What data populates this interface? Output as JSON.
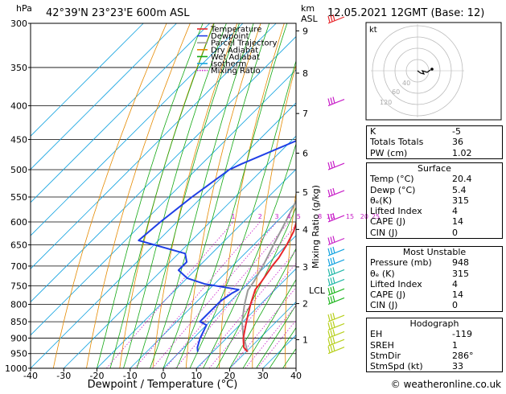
{
  "header": {
    "pressure_unit": "hPa",
    "location": "42°39'N  23°23'E  600m  ASL",
    "height_unit": "km",
    "height_unit2": "ASL",
    "datetime": "12.05.2021  12GMT  (Base: 12)"
  },
  "chart_data": {
    "type": "line",
    "xlabel": "Dewpoint / Temperature (°C)",
    "ylabel": "hPa",
    "right_label": "Mixing Ratio (g/kg)",
    "x_ticks": [
      -40,
      -30,
      -20,
      -10,
      0,
      10,
      20,
      30,
      40
    ],
    "xlim": [
      -40,
      40
    ],
    "ylim": [
      1000,
      300
    ],
    "y_scale": "log",
    "pressure_ticks": [
      300,
      350,
      400,
      450,
      500,
      550,
      600,
      650,
      700,
      750,
      800,
      850,
      900,
      950,
      1000
    ],
    "skew": true,
    "legend": [
      {
        "name": "Temperature",
        "color": "#e8262a"
      },
      {
        "name": "Dewpoint",
        "color": "#1f3fe6"
      },
      {
        "name": "Parcel Trajectory",
        "color": "#9a9a9a"
      },
      {
        "name": "Dry Adiabat",
        "color": "#e58a00"
      },
      {
        "name": "Wet Adiabat",
        "color": "#13a813"
      },
      {
        "name": "Isotherm",
        "color": "#15a4e0"
      },
      {
        "name": "Mixing Ratio",
        "color": "#c81fc8"
      }
    ],
    "legend_position": "top-left",
    "series": [
      {
        "name": "Temperature",
        "points": [
          [
            944,
            20.4
          ],
          [
            930,
            18
          ],
          [
            900,
            15
          ],
          [
            850,
            11
          ],
          [
            800,
            7
          ],
          [
            760,
            4
          ],
          [
            740,
            3.5
          ],
          [
            700,
            2
          ],
          [
            680,
            1.5
          ],
          [
            650,
            0
          ],
          [
            620,
            -2
          ],
          [
            600,
            -4
          ],
          [
            550,
            -8
          ],
          [
            500,
            -13
          ],
          [
            450,
            -19
          ],
          [
            400,
            -25
          ],
          [
            350,
            -32
          ],
          [
            320,
            -37
          ],
          [
            300,
            -41
          ]
        ]
      },
      {
        "name": "Dewpoint",
        "points": [
          [
            944,
            5.4
          ],
          [
            930,
            4
          ],
          [
            900,
            2
          ],
          [
            860,
            0
          ],
          [
            850,
            -3
          ],
          [
            820,
            -3
          ],
          [
            790,
            -3
          ],
          [
            770,
            -2
          ],
          [
            760,
            -1
          ],
          [
            745,
            -13
          ],
          [
            730,
            -20
          ],
          [
            710,
            -25
          ],
          [
            690,
            -25
          ],
          [
            670,
            -28
          ],
          [
            640,
            -46
          ],
          [
            600,
            -45
          ],
          [
            550,
            -43
          ],
          [
            500,
            -40
          ],
          [
            490,
            -38
          ],
          [
            450,
            -28
          ],
          [
            400,
            -27
          ],
          [
            370,
            -30
          ],
          [
            350,
            -30
          ],
          [
            330,
            -33
          ],
          [
            310,
            -31
          ],
          [
            300,
            -36
          ]
        ]
      },
      {
        "name": "Parcel Trajectory",
        "points": [
          [
            944,
            20.4
          ],
          [
            890,
            14
          ],
          [
            850,
            9.7
          ],
          [
            800,
            5.2
          ],
          [
            762,
            2
          ],
          [
            740,
            1.2
          ],
          [
            700,
            -0.8
          ],
          [
            650,
            -4
          ],
          [
            600,
            -7.3
          ],
          [
            550,
            -11
          ],
          [
            500,
            -15.5
          ],
          [
            450,
            -20.5
          ],
          [
            400,
            -26.5
          ],
          [
            350,
            -33.5
          ],
          [
            300,
            -42
          ]
        ]
      }
    ],
    "height_scale_km": [
      {
        "label": "1",
        "p": 905
      },
      {
        "label": "2",
        "p": 798
      },
      {
        "label": "3",
        "p": 702
      },
      {
        "label": "4",
        "p": 616
      },
      {
        "label": "5",
        "p": 541
      },
      {
        "label": "6",
        "p": 472
      },
      {
        "label": "7",
        "p": 411
      },
      {
        "label": "8",
        "p": 357
      },
      {
        "label": "9",
        "p": 308
      }
    ],
    "lcl_label": "LCL",
    "lcl_pressure": 762,
    "mixing_ratio_labels": [
      "1",
      "2",
      "3",
      "4",
      "5",
      "8",
      "10",
      "15",
      "20",
      "25"
    ],
    "mixing_ratio_values": [
      1,
      2,
      3,
      4,
      5,
      8,
      10,
      15,
      20,
      25
    ],
    "wind_barbs": [
      {
        "p": 950,
        "color": "#b8d01e"
      },
      {
        "p": 925,
        "color": "#b8d01e"
      },
      {
        "p": 900,
        "color": "#b8d01e"
      },
      {
        "p": 875,
        "color": "#b8d01e"
      },
      {
        "p": 850,
        "color": "#b8d01e"
      },
      {
        "p": 800,
        "color": "#22b822"
      },
      {
        "p": 775,
        "color": "#22b822"
      },
      {
        "p": 750,
        "color": "#22b8a8"
      },
      {
        "p": 725,
        "color": "#22b8a8"
      },
      {
        "p": 700,
        "color": "#15a4e0"
      },
      {
        "p": 675,
        "color": "#15a4e0"
      },
      {
        "p": 650,
        "color": "#c81fc8"
      },
      {
        "p": 600,
        "color": "#c81fc8"
      },
      {
        "p": 550,
        "color": "#c81fc8"
      },
      {
        "p": 500,
        "color": "#c81fc8"
      },
      {
        "p": 400,
        "color": "#c81fc8"
      },
      {
        "p": 300,
        "color": "#e8262a"
      }
    ]
  },
  "hodograph": {
    "unit_label": "kt",
    "ring_labels": [
      "40",
      "60",
      "120"
    ]
  },
  "indices": [
    {
      "label": "K",
      "value": "-5"
    },
    {
      "label": "Totals Totals",
      "value": "36"
    },
    {
      "label": "PW (cm)",
      "value": "1.02"
    }
  ],
  "surface": {
    "title": "Surface",
    "rows": [
      {
        "label": "Temp (°C)",
        "value": "20.4"
      },
      {
        "label": "Dewp (°C)",
        "value": "5.4"
      },
      {
        "label": "θₑ(K)",
        "value": "315"
      },
      {
        "label": "Lifted Index",
        "value": "4"
      },
      {
        "label": "CAPE (J)",
        "value": "14"
      },
      {
        "label": "CIN (J)",
        "value": "0"
      }
    ]
  },
  "most_unstable": {
    "title": "Most Unstable",
    "rows": [
      {
        "label": "Pressure (mb)",
        "value": "948"
      },
      {
        "label": "θₑ (K)",
        "value": "315"
      },
      {
        "label": "Lifted Index",
        "value": "4"
      },
      {
        "label": "CAPE (J)",
        "value": "14"
      },
      {
        "label": "CIN (J)",
        "value": "0"
      }
    ]
  },
  "hodograph_table": {
    "title": "Hodograph",
    "rows": [
      {
        "label": "EH",
        "value": "-119"
      },
      {
        "label": "SREH",
        "value": "1"
      },
      {
        "label": "StmDir",
        "value": "286°"
      },
      {
        "label": "StmSpd (kt)",
        "value": "33"
      }
    ]
  },
  "footer": {
    "copyright": "© weatheronline.co.uk"
  },
  "colors": {
    "temperature": "#e8262a",
    "dewpoint": "#1f3fe6",
    "parcel": "#9a9a9a",
    "dry_adiabat": "#e58a00",
    "wet_adiabat": "#13a813",
    "isotherm": "#15a4e0",
    "mixing_ratio": "#c81fc8"
  }
}
